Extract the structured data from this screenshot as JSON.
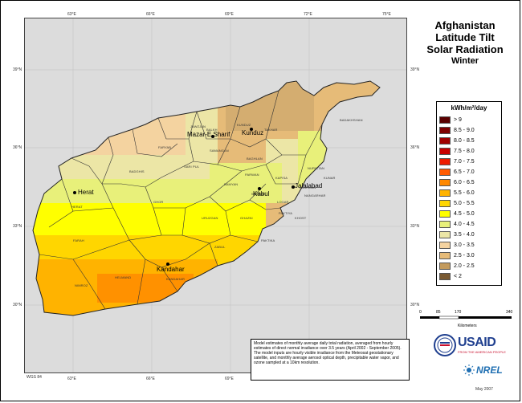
{
  "title": {
    "line1": "Afghanistan",
    "line2": "Latitude Tilt",
    "line3": "Solar Radiation",
    "season": "Winter"
  },
  "legend": {
    "unit": "kWh/m²/day",
    "classes": [
      {
        "label": "> 9",
        "color": "#5a0000"
      },
      {
        "label": "8.5 - 9.0",
        "color": "#7f0000"
      },
      {
        "label": "8.0 - 8.5",
        "color": "#a00000"
      },
      {
        "label": "7.5 - 8.0",
        "color": "#c80000"
      },
      {
        "label": "7.0 - 7.5",
        "color": "#ee1c00"
      },
      {
        "label": "6.5 - 7.0",
        "color": "#ff5a00"
      },
      {
        "label": "6.0 - 6.5",
        "color": "#ff8800"
      },
      {
        "label": "5.5 - 6.0",
        "color": "#ffb300"
      },
      {
        "label": "5.0 - 5.5",
        "color": "#ffd600"
      },
      {
        "label": "4.5 - 5.0",
        "color": "#ffff00"
      },
      {
        "label": "4.0 - 4.5",
        "color": "#e8f07a"
      },
      {
        "label": "3.5 - 4.0",
        "color": "#ece6a6"
      },
      {
        "label": "3.0 - 3.5",
        "color": "#f4d3a0"
      },
      {
        "label": "2.5 - 3.0",
        "color": "#e6bb78"
      },
      {
        "label": "2.0 - 2.5",
        "color": "#c39a5c"
      },
      {
        "label": "< 2",
        "color": "#7a5a32"
      }
    ]
  },
  "axes": {
    "top": [
      "63°E",
      "66°E",
      "69°E",
      "72°E",
      "75°E"
    ],
    "bottom": [
      "63°E",
      "66°E",
      "69°E",
      "72°E",
      "75°E"
    ],
    "left": [
      "39°N",
      "36°N",
      "33°N",
      "30°N"
    ],
    "right": [
      "39°N",
      "36°N",
      "33°N",
      "30°N"
    ]
  },
  "cities": [
    {
      "name": "Mazar-E Sharif"
    },
    {
      "name": "Kunduz"
    },
    {
      "name": "Herat"
    },
    {
      "name": "Kabul"
    },
    {
      "name": "Jalalabad"
    },
    {
      "name": "Kandahar"
    }
  ],
  "provinces": [
    "JAWZJAN",
    "BALKH",
    "KUNDUZ",
    "TAKHAR",
    "BADAKHSHAN",
    "FARYAB",
    "SAMANGAN",
    "BAGHLAN",
    "BADGHIS",
    "SARI PUL",
    "NURISTAN",
    "KUNAR",
    "PARWAN",
    "KAPISA",
    "LAGHMAN",
    "BAMYAN",
    "WARDAK",
    "NANGARHAR",
    "HERAT",
    "GHOR",
    "LOGAR",
    "URUZGAN",
    "GHAZNI",
    "PAKTIYA",
    "KHOST",
    "FARAH",
    "ZABUL",
    "PAKTIKA",
    "NIMROZ",
    "HELMAND",
    "KANDAHAR"
  ],
  "scale": {
    "ticks": [
      "0",
      "85",
      "170",
      "340"
    ],
    "unit": "Kilometers"
  },
  "caption": {
    "p1": "Model estimates of monthly average daily total radiation, averaged from hourly estimates of direct normal irradiance over 3.5 years (April 2002 - September 2005).",
    "p2": "The model inputs are hourly visible irradiance from the Meteosat geostationary satellite, and monthly average aerosol optical depth, precipitable water vapor, and ozone sampled at a 10km resolution."
  },
  "datum": "WGS 84",
  "usaid": {
    "name": "USAID",
    "tagline": "FROM THE AMERICAN PEOPLE"
  },
  "nrel": "NREL",
  "date": "May 2007"
}
